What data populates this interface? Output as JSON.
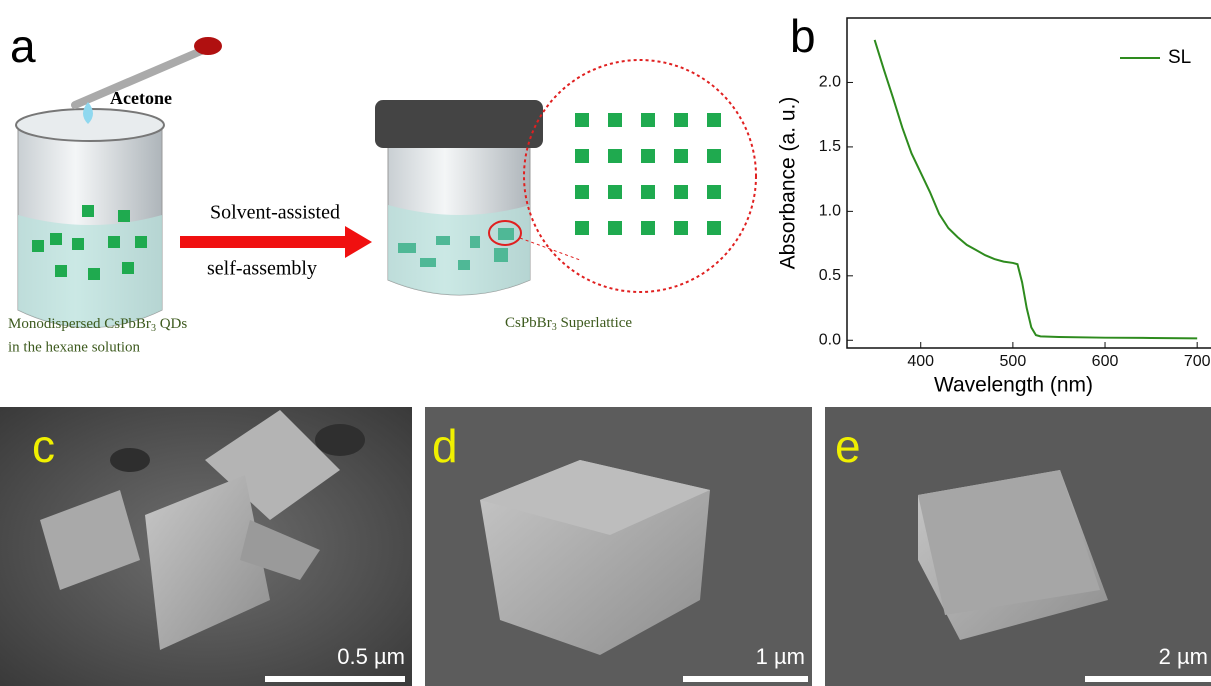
{
  "panel_labels": [
    "a",
    "b",
    "c",
    "d",
    "e"
  ],
  "schematic": {
    "reagent": "Acetone",
    "arrow_label_1": "Solvent-assisted",
    "arrow_label_2": "self-assembly",
    "left_caption": [
      "Monodispersed  CsPbBr",
      "3",
      " QDs",
      "in the hexane solution"
    ],
    "right_caption": [
      "CsPbBr",
      "3",
      " Superlattice"
    ]
  },
  "scale_bars": [
    "0.5 µm",
    "1 µm",
    "2 µm"
  ],
  "chart_data": {
    "type": "line",
    "xlabel": "Wavelength (nm)",
    "ylabel": "Absorbance (a. u.)",
    "x": [
      350,
      360,
      370,
      380,
      390,
      400,
      410,
      420,
      430,
      440,
      450,
      460,
      470,
      480,
      490,
      500,
      505,
      510,
      515,
      520,
      525,
      530,
      550,
      600,
      650,
      700
    ],
    "series": [
      {
        "name": "SL",
        "color": "#2e8b1e",
        "values": [
          2.33,
          2.1,
          1.88,
          1.65,
          1.45,
          1.3,
          1.15,
          0.98,
          0.87,
          0.8,
          0.74,
          0.7,
          0.66,
          0.63,
          0.61,
          0.6,
          0.59,
          0.45,
          0.25,
          0.1,
          0.04,
          0.03,
          0.025,
          0.02,
          0.018,
          0.015
        ]
      }
    ],
    "xlim": [
      320,
      715
    ],
    "ylim": [
      -0.06,
      2.5
    ],
    "xticks": [
      400,
      500,
      600,
      700
    ],
    "yticks": [
      {
        "value": 0,
        "label": "0.0"
      },
      0.5,
      {
        "value": 1,
        "label": "1.0"
      },
      1.5,
      {
        "value": 2,
        "label": "2.0"
      }
    ],
    "legend": "upper right"
  }
}
